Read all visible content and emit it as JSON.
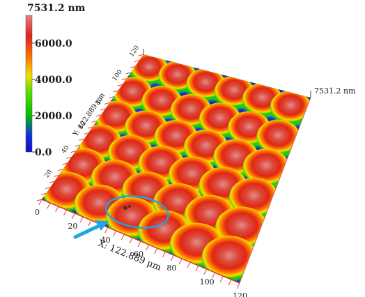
{
  "colorbar": {
    "max_label": "7531.2 nm",
    "tick_labels": [
      "6000.0",
      "4000.0",
      "2000.0",
      "0.0"
    ],
    "tick_values": [
      6000,
      4000,
      2000,
      0
    ],
    "max_value": 7531.2,
    "colors": [
      "#1010c8",
      "#00d000",
      "#f0e000",
      "#ff7000",
      "#e02020",
      "#e87878"
    ]
  },
  "surface": {
    "z_max_label": "7531.2 nm",
    "x_axis_title": "X: 122.889 μm",
    "y_axis_title": "Y: 122.889 μm",
    "x_tick_labels": [
      "0",
      "20",
      "40",
      "60",
      "80",
      "100",
      "120"
    ],
    "y_tick_labels": [
      "0",
      "20",
      "40",
      "60",
      "80",
      "100",
      "120"
    ],
    "grid": [
      6,
      6
    ],
    "annotation_color": "#1ea6e0"
  }
}
